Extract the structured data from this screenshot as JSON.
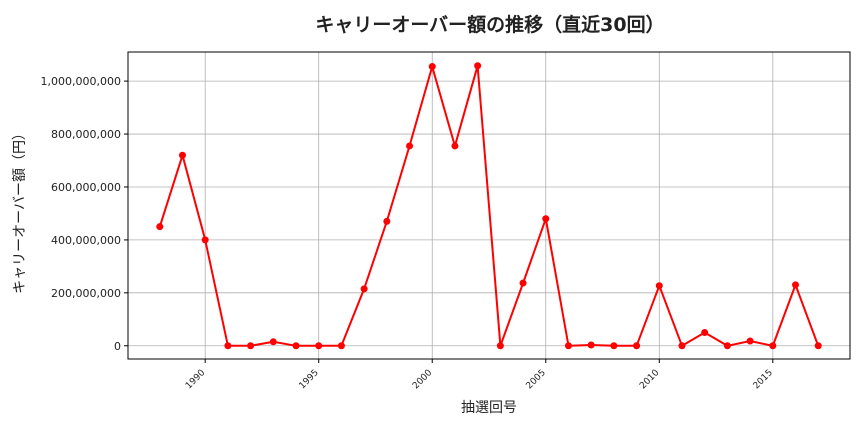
{
  "chart_data": {
    "type": "line",
    "title": "キャリーオーバー額の推移（直近30回）",
    "xlabel": "抽選回号",
    "ylabel": "キャリーオーバー額（円）",
    "x": [
      1988,
      1989,
      1990,
      1991,
      1992,
      1993,
      1994,
      1995,
      1996,
      1997,
      1998,
      1999,
      2000,
      2001,
      2002,
      2003,
      2004,
      2005,
      2006,
      2007,
      2008,
      2009,
      2010,
      2011,
      2012,
      2013,
      2014,
      2015,
      2016,
      2017
    ],
    "series": [
      {
        "values": [
          450000000,
          720000000,
          400000000,
          0,
          0,
          15000000,
          0,
          0,
          0,
          215000000,
          470000000,
          755000000,
          1055000000,
          755000000,
          1058000000,
          0,
          237000000,
          480000000,
          0,
          3000000,
          0,
          0,
          227000000,
          0,
          50000000,
          0,
          18000000,
          0,
          230000000,
          0
        ],
        "color": "#ff0000"
      }
    ],
    "xlim": [
      1986.6,
      2018.4
    ],
    "ylim": [
      -50000000,
      1110000000
    ],
    "xticks": [
      1990,
      1995,
      2000,
      2005,
      2010,
      2015
    ],
    "yticks": [
      0,
      200000000,
      400000000,
      600000000,
      800000000,
      1000000000
    ],
    "ytick_labels": [
      "0",
      "200,000,000",
      "400,000,000",
      "600,000,000",
      "800,000,000",
      "1,000,000,000"
    ],
    "grid": true,
    "legend": "none"
  }
}
